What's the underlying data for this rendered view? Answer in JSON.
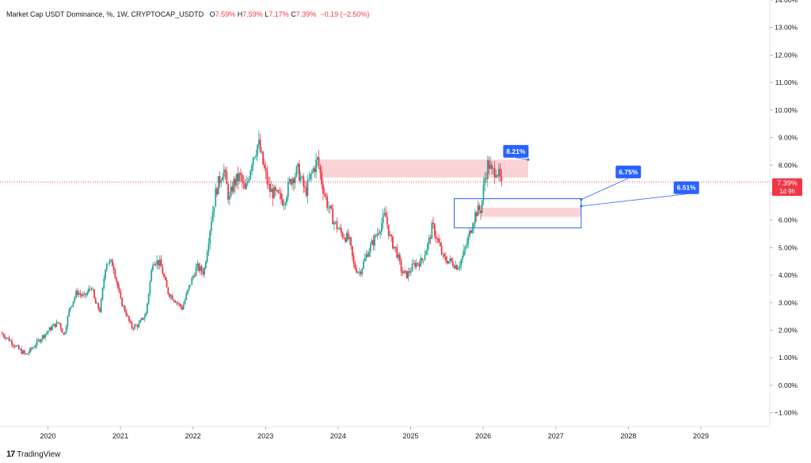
{
  "header": {
    "symbol_text": "Market Cap USDT Dominance, %, 1W, CRYPTOCAP_USDTD",
    "o_label": "O",
    "o_value": "7.59%",
    "h_label": "H",
    "h_value": "7.59%",
    "l_label": "L",
    "l_value": "7.17%",
    "c_label": "C",
    "c_value": "7.39%",
    "change": "−0.19 (−2.50%)"
  },
  "price_badge": {
    "value": "7.39%",
    "countdown": "1d 9h"
  },
  "branding": {
    "logo": "17",
    "name": "TradingView"
  },
  "colors": {
    "up": "#26a69a",
    "down": "#f23645",
    "zone": "#f7a7aa",
    "box": "#2962ff",
    "label_bg": "#2962ff"
  },
  "chart_data": {
    "type": "candlestick",
    "ylim": [
      -1.5,
      14.0
    ],
    "xlim": [
      2019.34,
      2029.95
    ],
    "y_ticks": [
      "14.00%",
      "13.00%",
      "12.00%",
      "11.00%",
      "10.00%",
      "9.00%",
      "8.00%",
      "7.00%",
      "6.00%",
      "5.00%",
      "4.00%",
      "3.00%",
      "2.00%",
      "1.00%",
      "0.00%",
      "−1.00%"
    ],
    "y_tick_values": [
      14,
      13,
      12,
      11,
      10,
      9,
      8,
      7,
      6,
      5,
      4,
      3,
      2,
      1,
      0,
      -1
    ],
    "x_ticks": [
      "2020",
      "2021",
      "2022",
      "2023",
      "2024",
      "2025",
      "2026",
      "2027",
      "2028",
      "2029"
    ],
    "x_tick_values": [
      2020,
      2021,
      2022,
      2023,
      2024,
      2025,
      2026,
      2027,
      2028,
      2029
    ],
    "current_price": 7.39,
    "price_path": [
      [
        2019.35,
        1.9
      ],
      [
        2019.45,
        1.7
      ],
      [
        2019.6,
        1.3
      ],
      [
        2019.7,
        1.1
      ],
      [
        2019.8,
        1.4
      ],
      [
        2019.9,
        1.7
      ],
      [
        2020.05,
        2.1
      ],
      [
        2020.15,
        2.3
      ],
      [
        2020.22,
        1.8
      ],
      [
        2020.3,
        2.8
      ],
      [
        2020.4,
        3.4
      ],
      [
        2020.5,
        3.2
      ],
      [
        2020.6,
        3.6
      ],
      [
        2020.65,
        3.0
      ],
      [
        2020.72,
        2.7
      ],
      [
        2020.8,
        4.5
      ],
      [
        2020.9,
        4.4
      ],
      [
        2021.0,
        3.1
      ],
      [
        2021.08,
        2.6
      ],
      [
        2021.15,
        2.1
      ],
      [
        2021.25,
        2.2
      ],
      [
        2021.35,
        2.6
      ],
      [
        2021.45,
        4.6
      ],
      [
        2021.55,
        4.4
      ],
      [
        2021.65,
        3.4
      ],
      [
        2021.75,
        3.1
      ],
      [
        2021.85,
        2.8
      ],
      [
        2021.95,
        3.6
      ],
      [
        2022.05,
        4.3
      ],
      [
        2022.15,
        4.1
      ],
      [
        2022.25,
        6.0
      ],
      [
        2022.32,
        7.1
      ],
      [
        2022.42,
        7.9
      ],
      [
        2022.5,
        6.7
      ],
      [
        2022.55,
        7.3
      ],
      [
        2022.65,
        7.6
      ],
      [
        2022.72,
        7.0
      ],
      [
        2022.82,
        8.3
      ],
      [
        2022.9,
        8.8
      ],
      [
        2022.95,
        8.2
      ],
      [
        2023.05,
        7.1
      ],
      [
        2023.15,
        6.9
      ],
      [
        2023.25,
        6.7
      ],
      [
        2023.35,
        7.5
      ],
      [
        2023.45,
        7.8
      ],
      [
        2023.55,
        7.0
      ],
      [
        2023.65,
        7.8
      ],
      [
        2023.72,
        8.2
      ],
      [
        2023.78,
        7.3
      ],
      [
        2023.85,
        6.6
      ],
      [
        2023.95,
        5.9
      ],
      [
        2024.05,
        5.5
      ],
      [
        2024.15,
        5.3
      ],
      [
        2024.22,
        4.3
      ],
      [
        2024.3,
        4.1
      ],
      [
        2024.4,
        4.8
      ],
      [
        2024.5,
        5.3
      ],
      [
        2024.6,
        5.9
      ],
      [
        2024.65,
        6.2
      ],
      [
        2024.72,
        5.3
      ],
      [
        2024.8,
        4.9
      ],
      [
        2024.88,
        4.1
      ],
      [
        2024.95,
        4.0
      ],
      [
        2025.05,
        4.4
      ],
      [
        2025.15,
        4.5
      ],
      [
        2025.25,
        5.2
      ],
      [
        2025.3,
        5.8
      ],
      [
        2025.38,
        5.2
      ],
      [
        2025.45,
        4.6
      ],
      [
        2025.55,
        4.5
      ],
      [
        2025.65,
        4.3
      ],
      [
        2025.72,
        4.7
      ],
      [
        2025.78,
        5.2
      ],
      [
        2025.85,
        5.9
      ],
      [
        2025.9,
        6.3
      ],
      [
        2025.97,
        6.4
      ],
      [
        2026.02,
        7.5
      ],
      [
        2026.07,
        8.1
      ],
      [
        2026.12,
        7.7
      ],
      [
        2026.18,
        7.9
      ],
      [
        2026.24,
        7.4
      ],
      [
        2026.26,
        7.39
      ]
    ],
    "annotations": [
      {
        "type": "zone",
        "label": "resistance-zone",
        "x0": 2023.75,
        "x1": 2026.62,
        "y0": 7.55,
        "y1": 8.2
      },
      {
        "type": "zone",
        "label": "support-zone",
        "x0": 2026.0,
        "x1": 2027.35,
        "y0": 6.12,
        "y1": 6.45
      },
      {
        "type": "box",
        "x0": 2025.6,
        "x1": 2027.35,
        "y0": 5.72,
        "y1": 6.78
      },
      {
        "type": "callout",
        "text": "8.21%",
        "x": 2026.45,
        "y": 8.5,
        "target_x": 2026.62,
        "target_y": 8.2
      },
      {
        "type": "callout",
        "text": "6.75%",
        "x": 2028.0,
        "y": 7.75,
        "target_x": 2027.35,
        "target_y": 6.75
      },
      {
        "type": "callout",
        "text": "6.51%",
        "x": 2028.8,
        "y": 7.18,
        "target_x": 2027.35,
        "target_y": 6.51
      }
    ]
  }
}
